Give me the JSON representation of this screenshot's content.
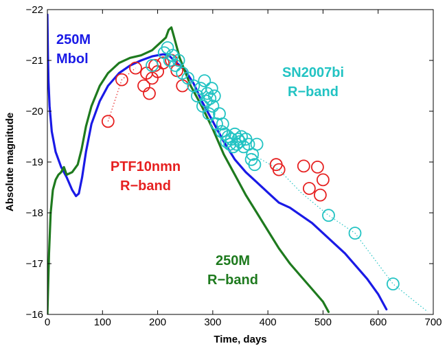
{
  "chart_data": {
    "type": "line",
    "xlabel": "Time, days",
    "ylabel": "Absolute magnitude",
    "xlim": [
      0,
      700
    ],
    "ylim": [
      -16,
      -22
    ],
    "y_reversed": true,
    "grid": false,
    "legend": "none",
    "xticks": [
      0,
      100,
      200,
      300,
      400,
      500,
      600,
      700
    ],
    "yticks": [
      -16,
      -17,
      -18,
      -19,
      -20,
      -21,
      -22
    ],
    "annotations": [
      {
        "lines": [
          "250M",
          "Mbol"
        ],
        "color": "#1a1ae6"
      },
      {
        "lines": [
          "SN2007bi",
          "R−band"
        ],
        "color": "#22c3c3"
      },
      {
        "lines": [
          "PTF10nmn",
          "R−band"
        ],
        "color": "#e62020"
      },
      {
        "lines": [
          "250M",
          "R−band"
        ],
        "color": "#1e7a1e"
      }
    ],
    "series": [
      {
        "name": "250M Mbol",
        "style": "line",
        "color": "#1a1ae6",
        "x": [
          0,
          1,
          2,
          4,
          8,
          15,
          25,
          35,
          45,
          52,
          57,
          63,
          70,
          80,
          95,
          110,
          130,
          150,
          170,
          190,
          210,
          220,
          230,
          240,
          250,
          265,
          280,
          300,
          320,
          340,
          360,
          380,
          400,
          420,
          440,
          460,
          480,
          500,
          520,
          540,
          560,
          580,
          600,
          615
        ],
        "y": [
          -21.9,
          -21.1,
          -20.6,
          -20.1,
          -19.6,
          -19.2,
          -18.9,
          -18.7,
          -18.45,
          -18.33,
          -18.38,
          -18.7,
          -19.2,
          -19.75,
          -20.2,
          -20.5,
          -20.75,
          -20.9,
          -21.0,
          -21.08,
          -21.12,
          -21.1,
          -21.0,
          -20.9,
          -20.8,
          -20.55,
          -20.2,
          -19.8,
          -19.4,
          -19.05,
          -18.8,
          -18.6,
          -18.4,
          -18.2,
          -18.1,
          -17.95,
          -17.8,
          -17.6,
          -17.4,
          -17.2,
          -16.95,
          -16.7,
          -16.4,
          -16.1
        ]
      },
      {
        "name": "250M R-band",
        "style": "line",
        "color": "#1e7a1e",
        "x": [
          0,
          1,
          3,
          6,
          10,
          15,
          20,
          25,
          30,
          35,
          45,
          55,
          62,
          70,
          80,
          95,
          110,
          130,
          150,
          170,
          190,
          205,
          215,
          220,
          225,
          230,
          240,
          260,
          280,
          300,
          320,
          340,
          360,
          380,
          400,
          420,
          440,
          460,
          480,
          500,
          510
        ],
        "y": [
          -16.0,
          -16.4,
          -17.2,
          -18.0,
          -18.45,
          -18.65,
          -18.75,
          -18.8,
          -18.9,
          -18.75,
          -18.8,
          -18.95,
          -19.25,
          -19.7,
          -20.1,
          -20.5,
          -20.75,
          -20.95,
          -21.05,
          -21.1,
          -21.2,
          -21.35,
          -21.45,
          -21.6,
          -21.65,
          -21.45,
          -21.05,
          -20.5,
          -20.1,
          -19.65,
          -19.15,
          -18.75,
          -18.35,
          -18.0,
          -17.65,
          -17.3,
          -17.0,
          -16.75,
          -16.5,
          -16.25,
          -16.05
        ]
      },
      {
        "name": "PTF10nmn R-band",
        "style": "markers",
        "marker": "circle",
        "color": "#e62020",
        "x": [
          110,
          135,
          160,
          175,
          180,
          185,
          190,
          195,
          200,
          210,
          225,
          235,
          245,
          415,
          420,
          465,
          475,
          490,
          495,
          500
        ],
        "y": [
          -19.8,
          -20.62,
          -20.85,
          -20.5,
          -20.75,
          -20.35,
          -20.65,
          -20.9,
          -20.78,
          -20.95,
          -21.0,
          -20.8,
          -20.5,
          -18.95,
          -18.85,
          -18.92,
          -18.48,
          -18.9,
          -18.35,
          -18.65
        ]
      },
      {
        "name": "SN2007bi R-band",
        "style": "markers",
        "marker": "circle",
        "color": "#22c3c3",
        "x": [
          190,
          212,
          218,
          222,
          227,
          232,
          238,
          245,
          255,
          265,
          272,
          278,
          282,
          285,
          288,
          290,
          293,
          295,
          298,
          300,
          303,
          307,
          312,
          316,
          318,
          322,
          325,
          328,
          331,
          334,
          337,
          340,
          343,
          346,
          349,
          352,
          356,
          360,
          365,
          370,
          372,
          376,
          380,
          510,
          558,
          627
        ],
        "y": [
          -20.9,
          -21.15,
          -21.25,
          -21.0,
          -21.1,
          -20.9,
          -21.0,
          -20.75,
          -20.65,
          -20.5,
          -20.3,
          -20.45,
          -20.1,
          -20.6,
          -20.2,
          -20.35,
          -19.95,
          -20.25,
          -20.45,
          -20.1,
          -20.3,
          -19.75,
          -19.95,
          -19.6,
          -19.75,
          -19.55,
          -19.4,
          -19.5,
          -19.35,
          -19.45,
          -19.3,
          -19.55,
          -19.35,
          -19.45,
          -19.4,
          -19.5,
          -19.3,
          -19.45,
          -19.35,
          -19.05,
          -19.15,
          -18.95,
          -19.35,
          -17.95,
          -17.6,
          -16.6
        ]
      }
    ],
    "dotted_connectors": [
      {
        "color": "#e62020",
        "x": [
          110,
          135,
          160
        ],
        "y": [
          -19.8,
          -20.62,
          -20.85
        ]
      },
      {
        "color": "#22c3c3",
        "x": [
          372,
          420,
          460,
          510,
          558,
          627,
          690
        ],
        "y": [
          -19.15,
          -18.85,
          -18.4,
          -17.95,
          -17.6,
          -16.6,
          -16.05
        ]
      }
    ]
  }
}
